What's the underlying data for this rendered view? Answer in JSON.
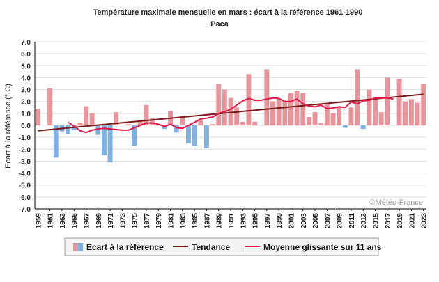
{
  "chart_data": {
    "type": "bar",
    "title": "Température maximale mensuelle en mars : écart à la référence 1961-1990",
    "subtitle": "Paca",
    "ylabel": "Ecart à la référence (° C)",
    "xlabel": "",
    "credit": "©Météo-France",
    "ylim": [
      -7,
      7
    ],
    "yticks": [
      "7.0",
      "6.0",
      "5.0",
      "4.0",
      "3.0",
      "2.0",
      "1.0",
      "0.0",
      "-1.0",
      "-2.0",
      "-3.0",
      "-4.0",
      "-5.0",
      "-6.0",
      "-7.0"
    ],
    "ytick_values": [
      7,
      6,
      5,
      4,
      3,
      2,
      1,
      0,
      -1,
      -2,
      -3,
      -4,
      -5,
      -6,
      -7
    ],
    "x_start": 1959,
    "x_end": 2023,
    "xtick_labels": [
      "1959",
      "1961",
      "1963",
      "1965",
      "1967",
      "1969",
      "1971",
      "1973",
      "1975",
      "1977",
      "1979",
      "1981",
      "1983",
      "1985",
      "1987",
      "1989",
      "1991",
      "1993",
      "1995",
      "1997",
      "1999",
      "2001",
      "2003",
      "2005",
      "2007",
      "2009",
      "2011",
      "2013",
      "2015",
      "2017",
      "2019",
      "2021",
      "2023"
    ],
    "years": [
      1959,
      1960,
      1961,
      1962,
      1963,
      1964,
      1965,
      1966,
      1967,
      1968,
      1969,
      1970,
      1971,
      1972,
      1973,
      1974,
      1975,
      1976,
      1977,
      1978,
      1979,
      1980,
      1981,
      1982,
      1983,
      1984,
      1985,
      1986,
      1987,
      1988,
      1989,
      1990,
      1991,
      1992,
      1993,
      1994,
      1995,
      1996,
      1997,
      1998,
      1999,
      2000,
      2001,
      2002,
      2003,
      2004,
      2005,
      2006,
      2007,
      2008,
      2009,
      2010,
      2011,
      2012,
      2013,
      2014,
      2015,
      2016,
      2017,
      2018,
      2019,
      2020,
      2021,
      2022,
      2023
    ],
    "values": [
      1.4,
      0.0,
      3.1,
      -2.7,
      -0.5,
      -0.7,
      -0.4,
      0.2,
      1.6,
      1.0,
      -0.8,
      -2.5,
      -3.1,
      1.1,
      0.0,
      0.1,
      -1.7,
      0.4,
      1.7,
      0.6,
      0.1,
      -0.3,
      1.2,
      -0.6,
      0.8,
      -1.5,
      -1.7,
      0.5,
      -1.9,
      0.1,
      3.5,
      3.0,
      2.3,
      1.5,
      0.3,
      4.3,
      0.3,
      0.0,
      4.7,
      2.0,
      2.2,
      2.0,
      2.7,
      2.9,
      2.7,
      0.7,
      1.1,
      0.2,
      1.8,
      1.0,
      1.5,
      -0.2,
      1.5,
      4.7,
      -0.3,
      3.0,
      2.2,
      1.1,
      4.0,
      0.0,
      3.9,
      2.0,
      2.2,
      1.9,
      3.5
    ],
    "trend": {
      "name": "Tendance",
      "x": [
        1959,
        2023
      ],
      "y": [
        -0.45,
        2.6
      ],
      "color": "#7a1a1a"
    },
    "moving_average": {
      "name": "Moyenne glissante sur 11 ans",
      "color": "#e8184a",
      "x": [
        1964,
        1965,
        1966,
        1967,
        1968,
        1969,
        1970,
        1971,
        1972,
        1973,
        1974,
        1975,
        1976,
        1977,
        1978,
        1979,
        1980,
        1981,
        1982,
        1983,
        1984,
        1985,
        1986,
        1987,
        1988,
        1989,
        1990,
        1991,
        1992,
        1993,
        1994,
        1995,
        1996,
        1997,
        1998,
        1999,
        2000,
        2001,
        2002,
        2003,
        2004,
        2005,
        2006,
        2007,
        2008,
        2009,
        2010,
        2011,
        2012,
        2013,
        2014,
        2015,
        2016,
        2017,
        2018
      ],
      "y": [
        0.25,
        -0.05,
        -0.45,
        -0.6,
        -0.4,
        -0.3,
        -0.25,
        -0.3,
        -0.35,
        -0.4,
        -0.4,
        -0.2,
        0.0,
        0.2,
        0.2,
        0.1,
        -0.1,
        0.1,
        -0.2,
        -0.25,
        0.0,
        0.25,
        0.55,
        0.6,
        0.7,
        1.0,
        1.15,
        1.35,
        1.7,
        2.05,
        2.25,
        2.1,
        2.1,
        2.2,
        2.3,
        2.25,
        2.0,
        2.0,
        2.2,
        1.8,
        1.6,
        1.55,
        1.7,
        1.4,
        1.45,
        1.55,
        1.5,
        1.95,
        1.8,
        2.05,
        2.1,
        2.3,
        2.3,
        2.3,
        2.2
      ]
    },
    "legend": {
      "bars_label": "Ecart à la référence",
      "trend_label": "Tendance",
      "ma_label": "Moyenne glissante sur 11 ans",
      "placement": "bottom"
    },
    "colors": {
      "positive": "#e8949a",
      "negative": "#7fb2e2",
      "grid": "#dddddd",
      "axis": "#000000"
    },
    "grid": true
  }
}
